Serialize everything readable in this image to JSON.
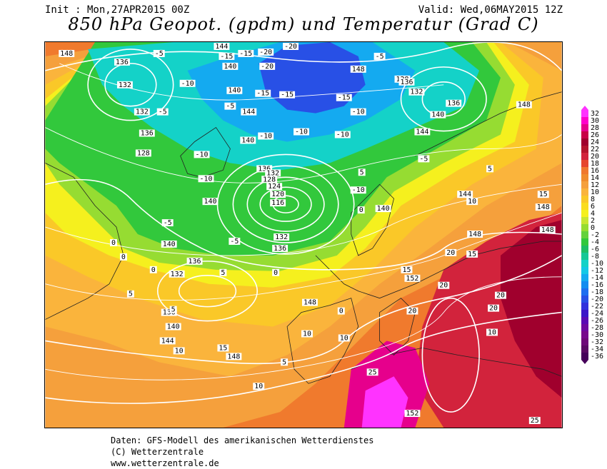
{
  "header": {
    "init": "Init : Mon,27APR2015 00Z",
    "valid": "Valid: Wed,06MAY2015 12Z",
    "title": "850 hPa Geopot. (gpdm) und Temperatur (Grad C)"
  },
  "footer": {
    "line1": "Daten: GFS-Modell des amerikanischen Wetterdienstes",
    "line2": "(C) Wetterzentrale",
    "line3": "www.wetterzentrale.de"
  },
  "scale": {
    "values": [
      "32",
      "30",
      "28",
      "26",
      "24",
      "22",
      "20",
      "18",
      "16",
      "14",
      "12",
      "10",
      "8",
      "6",
      "4",
      "2",
      "0",
      "-2",
      "-4",
      "-6",
      "-8",
      "-10",
      "-12",
      "-14",
      "-16",
      "-18",
      "-20",
      "-22",
      "-24",
      "-26",
      "-28",
      "-30",
      "-32",
      "-34",
      "-36"
    ],
    "colors": [
      "#ff33ff",
      "#ff00cc",
      "#e6008c",
      "#c80046",
      "#a0002d",
      "#b4142d",
      "#d2233c",
      "#e6462d",
      "#f0782d",
      "#f08c2d",
      "#f5a03c",
      "#fab43c",
      "#fac828",
      "#fadc1e",
      "#f5f01e",
      "#c8e632",
      "#96dc32",
      "#64d23c",
      "#32c83c",
      "#1ebe64",
      "#14c896",
      "#14d2c8",
      "#14c8e6",
      "#14aaf0",
      "#148cf0",
      "#1e6ef0",
      "#2850e6",
      "#3232dc",
      "#3c14c8",
      "#5a0ab4",
      "#6e0aa0",
      "#780a8c",
      "#6e0a78",
      "#5a0a64",
      "#46005a"
    ]
  },
  "map": {
    "geopotential_labels": [
      "148",
      "136",
      "132",
      "132",
      "128",
      "136",
      "144",
      "140",
      "140",
      "144",
      "136",
      "132",
      "124",
      "120",
      "116",
      "128",
      "140",
      "140",
      "132",
      "136",
      "140",
      "136",
      "132",
      "136",
      "140",
      "144",
      "148",
      "148",
      "144",
      "140",
      "136",
      "128",
      "132",
      "136",
      "140",
      "144",
      "148",
      "148",
      "148",
      "152",
      "152",
      "148",
      "148"
    ],
    "temperature_labels": [
      "-15",
      "-20",
      "-20",
      "-5",
      "-10",
      "-5",
      "-15",
      "-20",
      "-15",
      "-10",
      "-10",
      "-5",
      "-10",
      "-5",
      "-10",
      "-5",
      "-10",
      "-15",
      "-15",
      "-10",
      "-5",
      "-10",
      "0",
      "-5",
      "0",
      "0",
      "0",
      "5",
      "0",
      "5",
      "5",
      "10",
      "10",
      "10",
      "15",
      "15",
      "20",
      "20",
      "20",
      "20",
      "20",
      "25",
      "25",
      "5",
      "15",
      "10",
      "10",
      "15",
      "10",
      "5",
      "5",
      "0"
    ]
  }
}
